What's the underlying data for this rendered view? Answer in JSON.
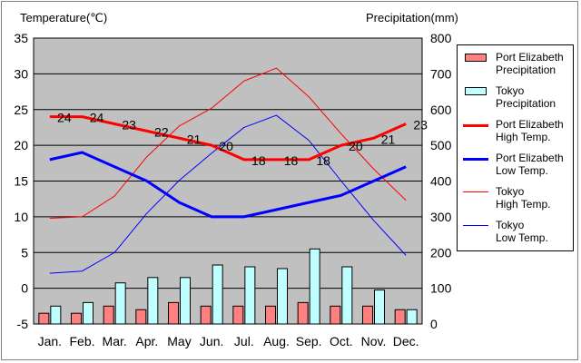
{
  "axis_titles": {
    "left": "Temperature(℃)",
    "right": "Precipitation(mm)"
  },
  "colors": {
    "pe_precip": "#FF8080",
    "tokyo_precip": "#C0FFFF",
    "pe_high": "#FF0000",
    "pe_low": "#0000FF",
    "tokyo_high": "#FF0000",
    "tokyo_low": "#0000FF",
    "plot_bg": "#C0C0C0"
  },
  "chart_data": {
    "type": "line",
    "categories": [
      "Jan.",
      "Feb.",
      "Mar.",
      "Apr.",
      "May",
      "Jun.",
      "Jul.",
      "Aug.",
      "Sep.",
      "Oct.",
      "Nov.",
      "Dec."
    ],
    "y_left": {
      "label": "Temperature(℃)",
      "range": [
        -5,
        35
      ],
      "ticks": [
        -5,
        0,
        5,
        10,
        15,
        20,
        25,
        30,
        35
      ]
    },
    "y_right": {
      "label": "Precipitation(mm)",
      "range": [
        0,
        800
      ],
      "ticks": [
        0,
        100,
        200,
        300,
        400,
        500,
        600,
        700,
        800
      ]
    },
    "grid": true,
    "legend_position": "right",
    "series": [
      {
        "name": "Port Elizabeth Precipitation",
        "type": "bar",
        "axis": "right",
        "values": [
          30,
          30,
          50,
          40,
          60,
          50,
          50,
          50,
          60,
          50,
          50,
          40
        ]
      },
      {
        "name": "Tokyo Precipitation",
        "type": "bar",
        "axis": "right",
        "values": [
          50,
          60,
          115,
          130,
          130,
          165,
          160,
          155,
          210,
          160,
          95,
          40
        ]
      },
      {
        "name": "Port Elizabeth High Temp.",
        "type": "line",
        "axis": "left",
        "values": [
          24,
          24,
          23,
          22,
          21,
          20,
          18,
          18,
          18,
          20,
          21,
          23
        ],
        "labels": [
          "24",
          "24",
          "23",
          "22",
          "21",
          "20",
          "18",
          "18",
          "18",
          "20",
          "21",
          "23"
        ]
      },
      {
        "name": "Port Elizabeth Low Temp.",
        "type": "line",
        "axis": "left",
        "values": [
          18,
          19,
          17,
          15,
          12,
          10,
          10,
          11,
          12,
          13,
          15,
          17
        ]
      },
      {
        "name": "Tokyo High Temp.",
        "type": "line",
        "axis": "left",
        "values": [
          9.8,
          10,
          12.9,
          18.4,
          22.7,
          25.2,
          29,
          30.8,
          26.8,
          21.6,
          16.7,
          12.3
        ]
      },
      {
        "name": "Tokyo Low Temp.",
        "type": "line",
        "axis": "left",
        "values": [
          2.1,
          2.4,
          5,
          10.5,
          15.1,
          18.9,
          22.5,
          24.2,
          20.7,
          15,
          9.5,
          4.6
        ]
      }
    ]
  },
  "legend": [
    {
      "key": "pe_precip",
      "text": "Port Elizabeth\nPrecipitation",
      "kind": "bar"
    },
    {
      "key": "tokyo_precip",
      "text": "Tokyo\nPrecipitation",
      "kind": "bar"
    },
    {
      "key": "pe_high",
      "text": "Port Elizabeth\nHigh Temp.",
      "kind": "thick"
    },
    {
      "key": "pe_low",
      "text": "Port Elizabeth\nLow Temp.",
      "kind": "thick"
    },
    {
      "key": "tokyo_high",
      "text": "Tokyo\nHigh Temp.",
      "kind": "thin"
    },
    {
      "key": "tokyo_low",
      "text": "Tokyo\nLow Temp.",
      "kind": "thin"
    }
  ]
}
